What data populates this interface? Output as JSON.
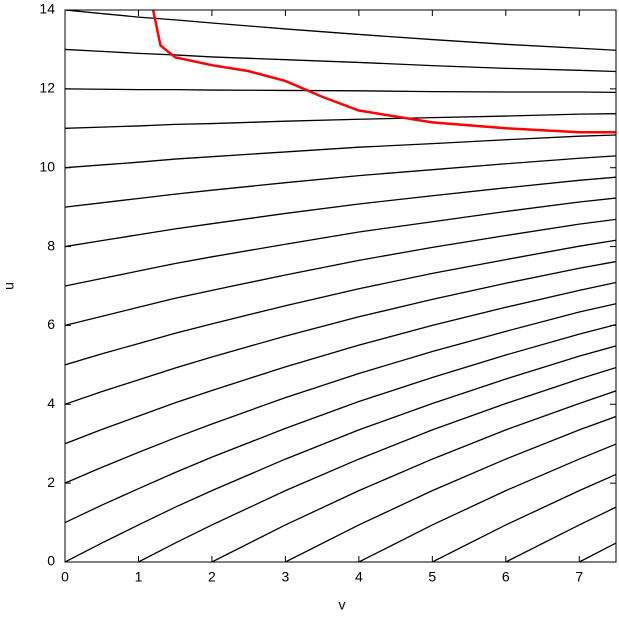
{
  "chart_data": {
    "type": "line",
    "xlabel": "v",
    "ylabel": "u",
    "x": [
      0,
      0.5,
      1,
      1.5,
      2,
      3,
      4,
      5,
      6,
      7,
      7.5
    ],
    "xlim": [
      0,
      7.5
    ],
    "xticks": [
      0,
      1,
      2,
      3,
      4,
      5,
      6,
      7
    ],
    "ylim": [
      0,
      14
    ],
    "yticks": [
      0,
      2,
      4,
      6,
      8,
      10,
      12,
      14
    ],
    "series": [
      {
        "color": "#000000",
        "values": [
          0,
          0.48,
          0.94,
          1.39,
          1.81,
          2.61,
          3.35,
          4.02,
          4.64,
          5.22,
          5.48
        ]
      },
      {
        "color": "#000000",
        "values": [
          1,
          1.44,
          1.86,
          2.27,
          2.66,
          3.39,
          4.07,
          4.68,
          5.25,
          5.78,
          6.02
        ]
      },
      {
        "color": "#000000",
        "values": [
          2,
          2.4,
          2.78,
          3.15,
          3.5,
          4.17,
          4.78,
          5.34,
          5.85,
          6.34,
          6.55
        ]
      },
      {
        "color": "#000000",
        "values": [
          3,
          3.36,
          3.7,
          4.04,
          4.35,
          4.95,
          5.5,
          6.0,
          6.46,
          6.89,
          7.09
        ]
      },
      {
        "color": "#000000",
        "values": [
          4,
          4.32,
          4.62,
          4.92,
          5.2,
          5.73,
          6.22,
          6.66,
          7.07,
          7.45,
          7.62
        ]
      },
      {
        "color": "#000000",
        "values": [
          5,
          5.28,
          5.54,
          5.8,
          6.04,
          6.5,
          6.93,
          7.32,
          7.67,
          8.01,
          8.16
        ]
      },
      {
        "color": "#000000",
        "values": [
          6,
          6.23,
          6.46,
          6.69,
          6.89,
          7.28,
          7.65,
          7.98,
          8.28,
          8.57,
          8.69
        ]
      },
      {
        "color": "#000000",
        "values": [
          7,
          7.19,
          7.38,
          7.57,
          7.74,
          8.06,
          8.37,
          8.63,
          8.89,
          9.13,
          9.23
        ]
      },
      {
        "color": "#000000",
        "values": [
          8,
          8.15,
          8.3,
          8.45,
          8.58,
          8.84,
          9.08,
          9.29,
          9.49,
          9.68,
          9.76
        ]
      },
      {
        "color": "#000000",
        "values": [
          9,
          9.11,
          9.22,
          9.33,
          9.43,
          9.62,
          9.8,
          9.95,
          10.1,
          10.24,
          10.3
        ]
      },
      {
        "color": "#000000",
        "values": [
          10,
          10.07,
          10.14,
          10.22,
          10.28,
          10.4,
          10.52,
          10.61,
          10.71,
          10.8,
          10.83
        ]
      },
      {
        "color": "#000000",
        "values": [
          11,
          11.03,
          11.06,
          11.1,
          11.12,
          11.18,
          11.23,
          11.27,
          11.31,
          11.36,
          11.37
        ]
      },
      {
        "color": "#000000",
        "values": [
          12,
          11.99,
          11.98,
          11.98,
          11.97,
          11.96,
          11.95,
          11.93,
          11.92,
          11.92,
          11.91
        ]
      },
      {
        "color": "#000000",
        "values": [
          13,
          12.95,
          12.9,
          12.86,
          12.81,
          12.74,
          12.67,
          12.59,
          12.52,
          12.47,
          12.44
        ]
      },
      {
        "color": "#000000",
        "values": [
          14,
          13.91,
          13.82,
          13.75,
          13.67,
          13.52,
          13.38,
          13.25,
          13.13,
          13.03,
          12.98
        ]
      },
      {
        "color": "#000000",
        "values": [
          null,
          null,
          0,
          0.48,
          0.94,
          1.81,
          2.61,
          3.35,
          4.02,
          4.64,
          4.93
        ]
      },
      {
        "color": "#000000",
        "values": [
          null,
          null,
          null,
          null,
          0,
          0.94,
          1.81,
          2.61,
          3.35,
          4.02,
          4.34
        ]
      },
      {
        "color": "#000000",
        "values": [
          null,
          null,
          null,
          null,
          null,
          0,
          0.94,
          1.81,
          2.61,
          3.35,
          3.69
        ]
      },
      {
        "color": "#000000",
        "values": [
          null,
          null,
          null,
          null,
          null,
          null,
          0,
          0.94,
          1.81,
          2.61,
          2.99
        ]
      },
      {
        "color": "#000000",
        "values": [
          null,
          null,
          null,
          null,
          null,
          null,
          null,
          0,
          0.94,
          1.81,
          2.22
        ]
      },
      {
        "color": "#000000",
        "values": [
          null,
          null,
          null,
          null,
          null,
          null,
          null,
          null,
          0,
          0.94,
          1.39
        ]
      },
      {
        "color": "#000000",
        "values": [
          null,
          null,
          null,
          null,
          null,
          null,
          null,
          null,
          null,
          0,
          0.48
        ]
      }
    ],
    "highlight": {
      "color": "#ff0000",
      "x": [
        1.2,
        1.3,
        1.5,
        2,
        2.5,
        3,
        3.5,
        4,
        5,
        6,
        7,
        7.5
      ],
      "values": [
        14,
        13.1,
        12.8,
        12.6,
        12.45,
        12.2,
        11.8,
        11.45,
        11.15,
        11.0,
        10.9,
        10.9
      ]
    }
  }
}
